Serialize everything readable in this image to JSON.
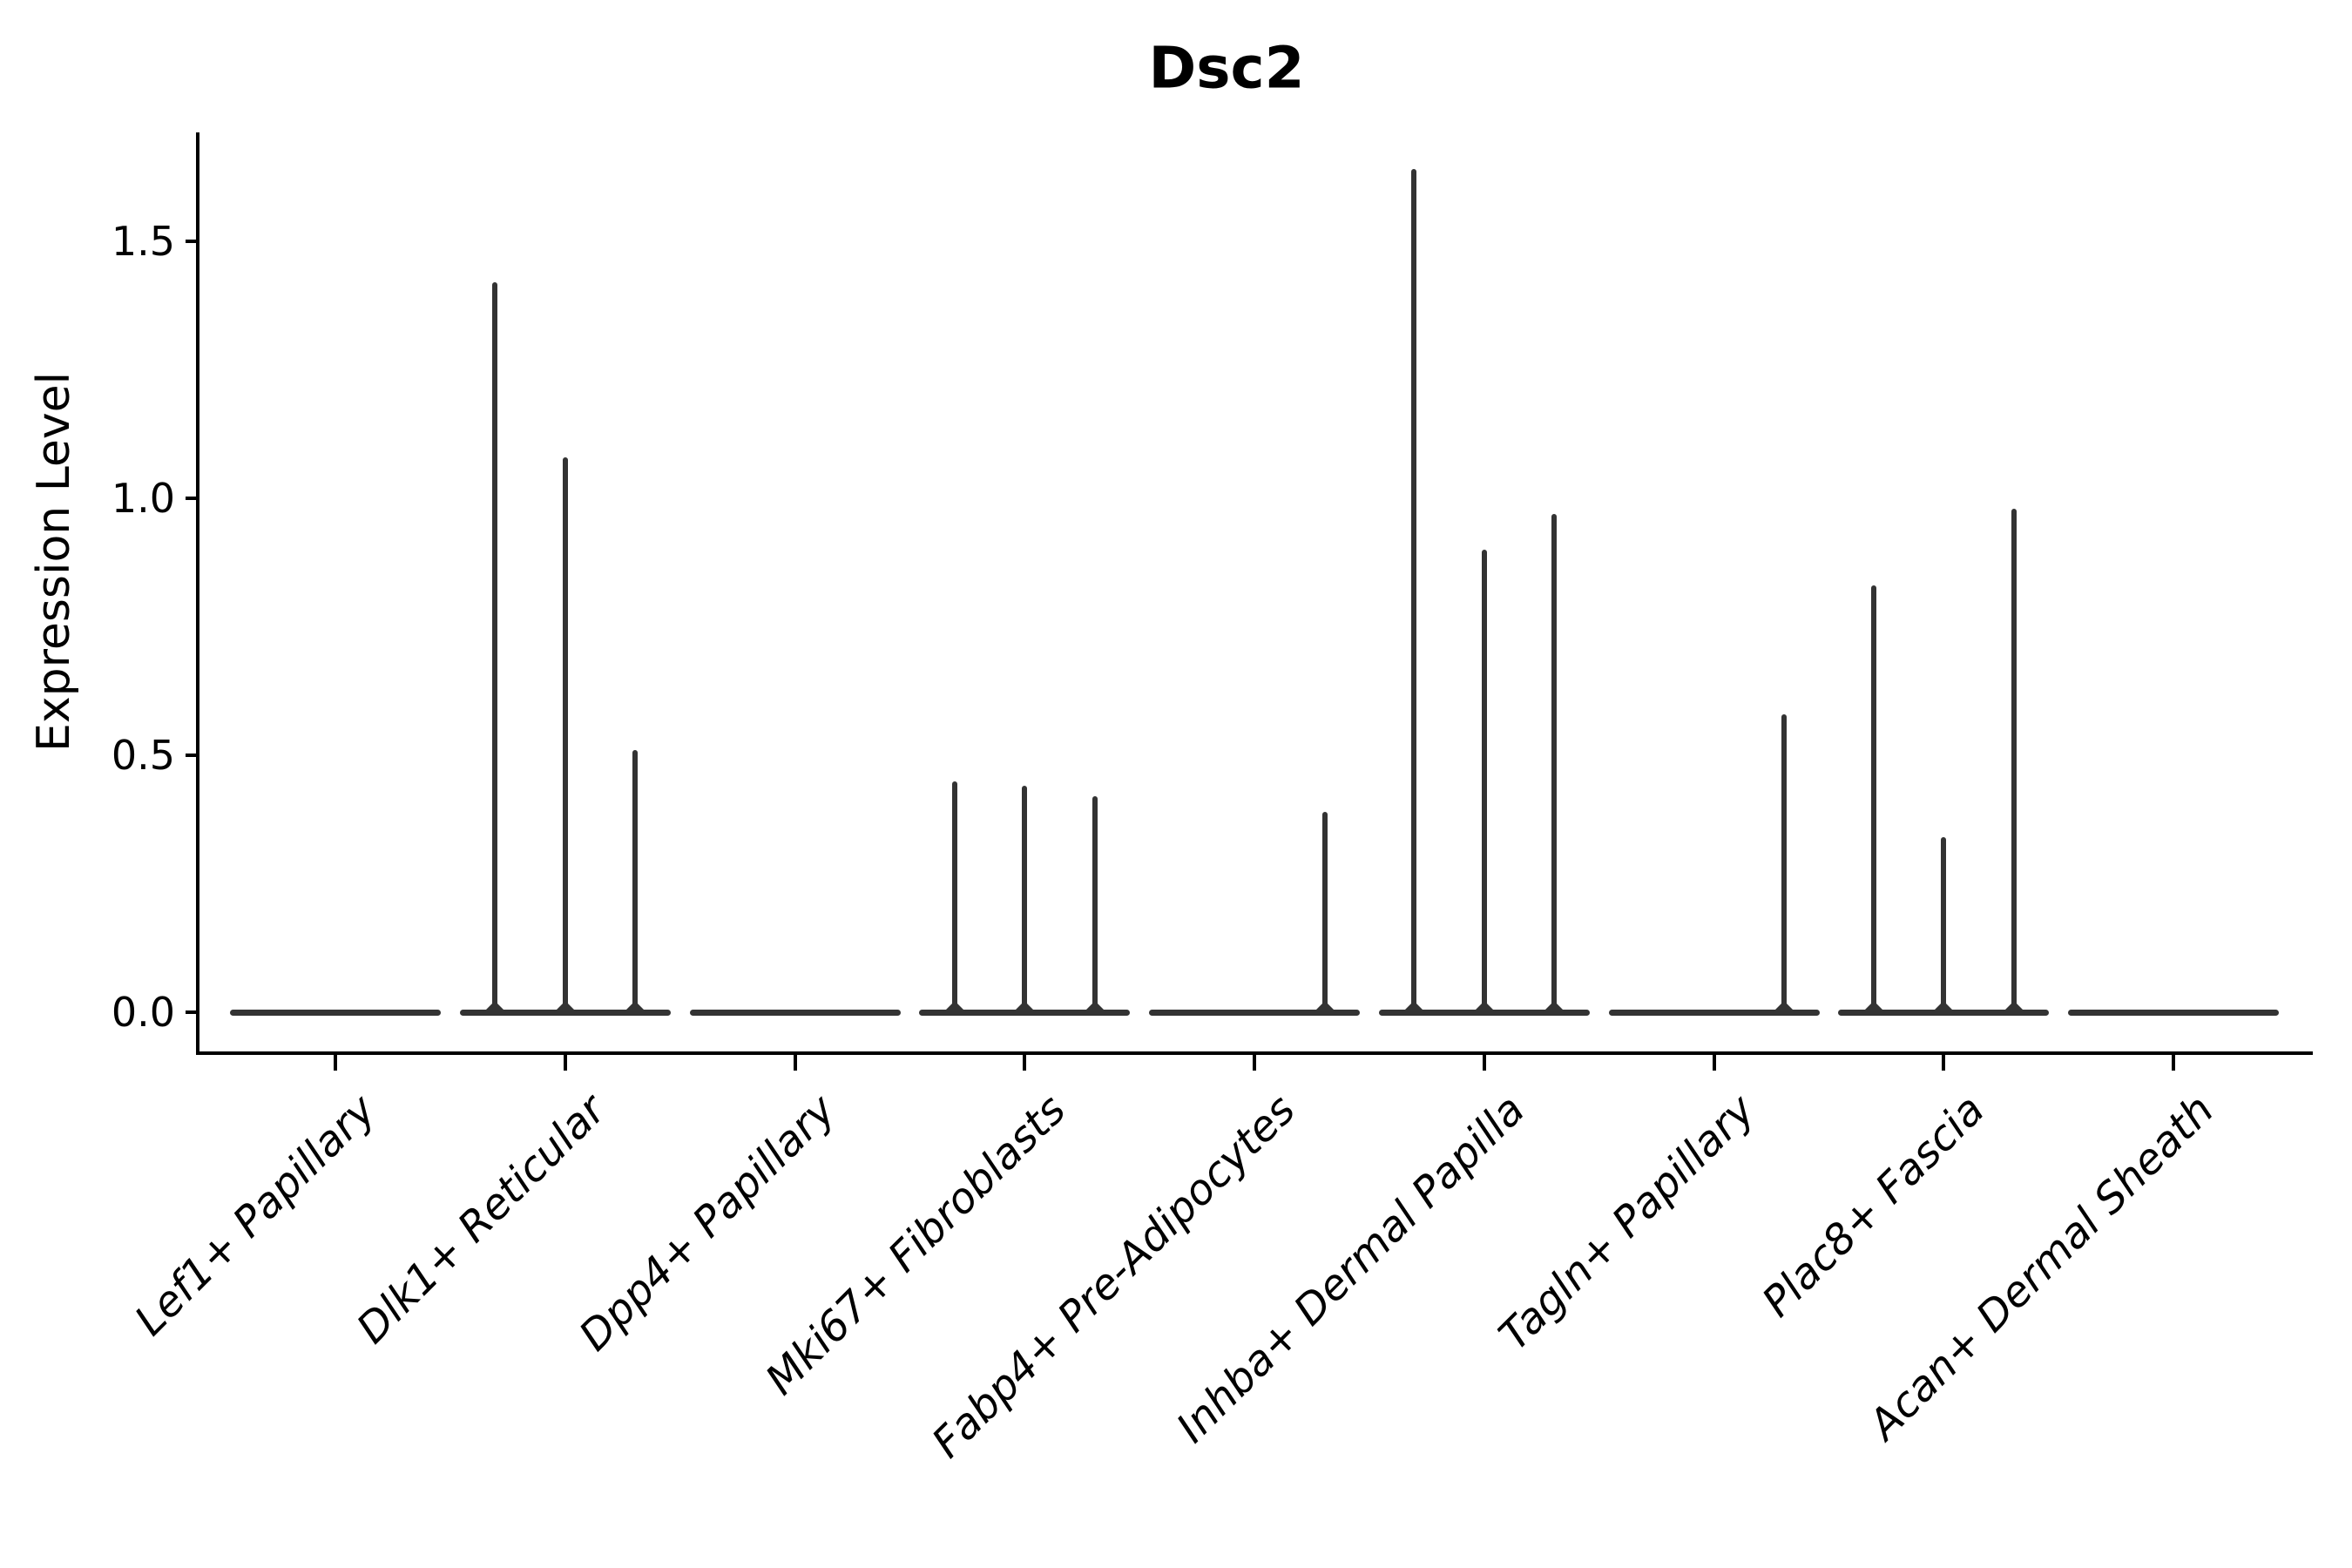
{
  "title": "Dsc2",
  "ylabel": "Expression Level",
  "chart_data": {
    "type": "violin",
    "title": "Dsc2",
    "xlabel": "",
    "ylabel": "Expression Level",
    "categories": [
      "Lef1+ Papillary",
      "Dlk1+ Reticular",
      "Dpp4+ Papillary",
      "Mki67+ Fibroblasts",
      "Fabp4+ Pre-Adipocytes",
      "Inhba+ Dermal Papilla",
      "Tagln+ Papillary",
      "Plac8+ Fascia",
      "Acan+ Dermal Sheath"
    ],
    "violins_per_category": 3,
    "max_expression_values": [
      [
        0,
        0,
        0
      ],
      [
        1.42,
        1.08,
        0.51
      ],
      [
        0,
        0,
        0
      ],
      [
        0.45,
        0.44,
        0.42
      ],
      [
        0,
        0,
        0.39
      ],
      [
        1.64,
        0.9,
        0.97
      ],
      [
        0,
        0,
        0.58
      ],
      [
        0.83,
        0.34,
        0.98
      ],
      [
        0,
        0,
        0
      ]
    ],
    "yticks": [
      0.0,
      0.5,
      1.0,
      1.5
    ],
    "ytick_labels": [
      "0.0",
      "0.5",
      "1.0",
      "1.5"
    ],
    "ylim": [
      -0.08,
      1.71
    ],
    "grid": false,
    "legend": "none",
    "colors": {
      "violin": "#333333",
      "axis": "#000000",
      "background": "#ffffff"
    }
  }
}
